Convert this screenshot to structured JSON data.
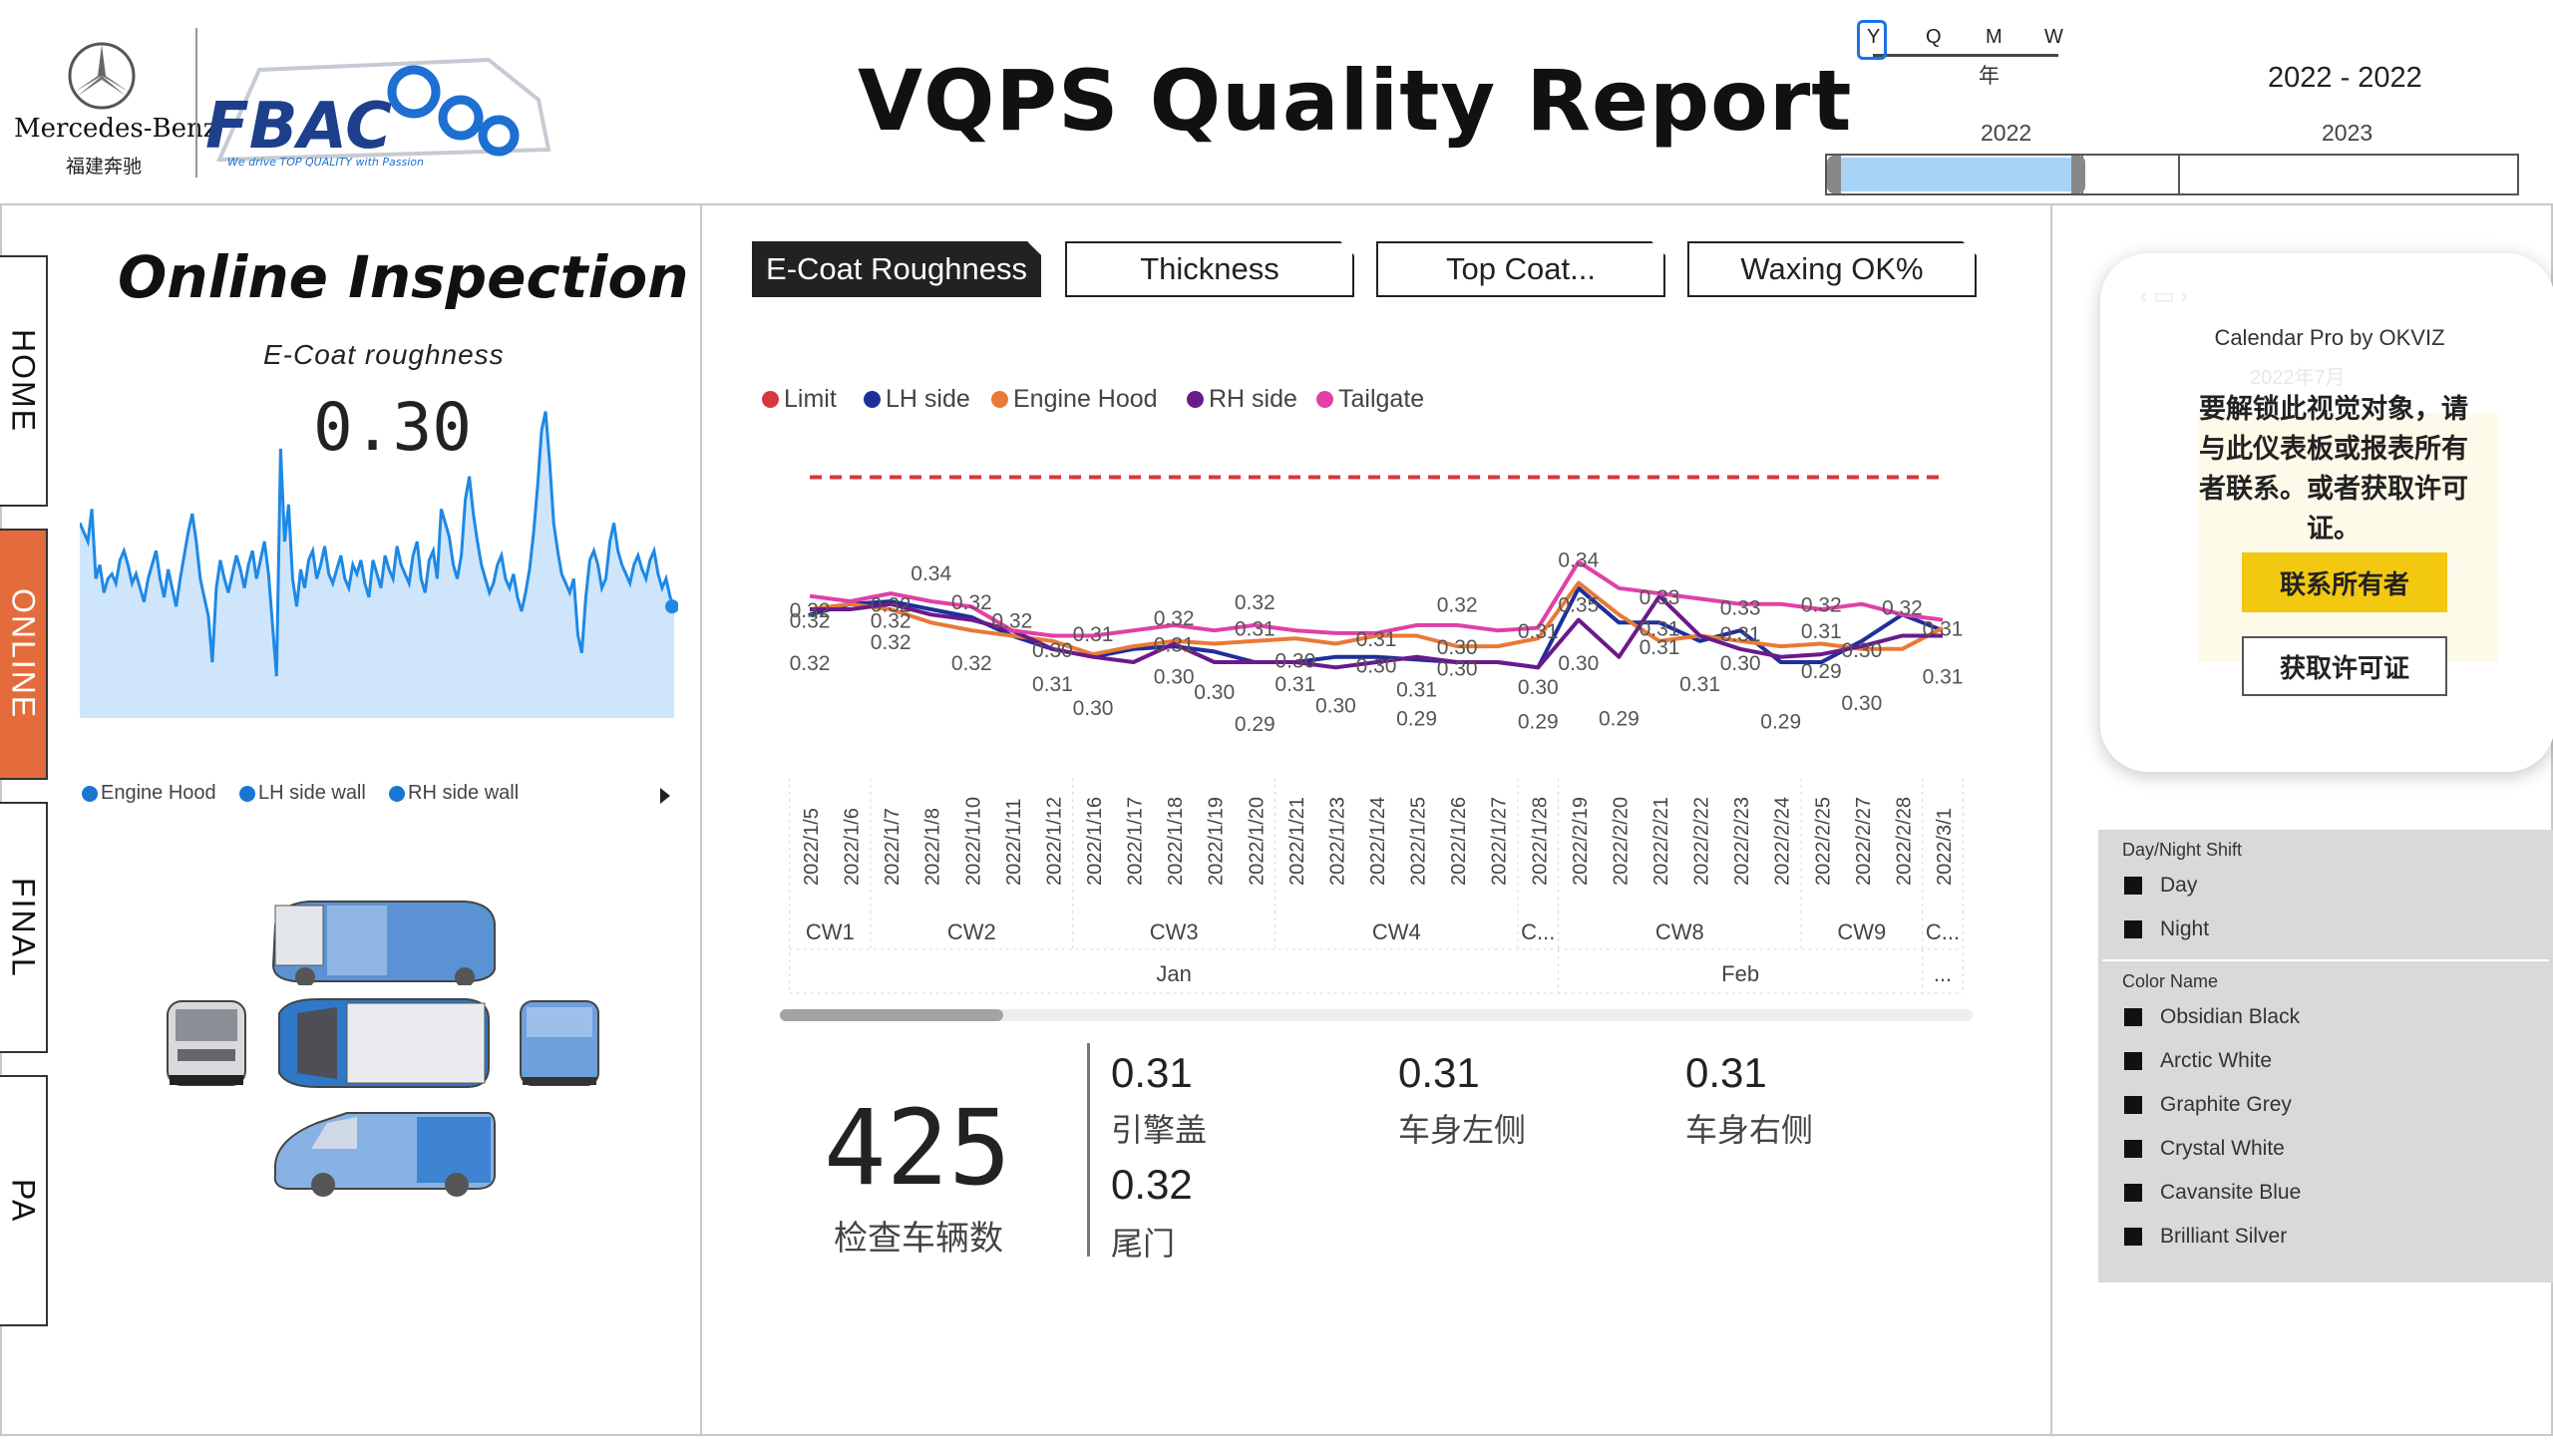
{
  "header": {
    "brand": "Mercedes-Benz",
    "brand_cn": "福建奔驰",
    "fbac_logo": "FBAC",
    "fbac_tagline": "We drive TOP QUALITY with Passion",
    "title": "VQPS Quality Report"
  },
  "date_slicer": {
    "granularity": [
      "Y",
      "Q",
      "M",
      "W"
    ],
    "selected_granularity": "Y",
    "granularity_label": "年",
    "range_text": "2022 - 2022",
    "years": [
      "2022",
      "2023"
    ],
    "selection_fraction": 0.36
  },
  "nav_tabs": [
    {
      "label": "HOME",
      "active": false
    },
    {
      "label": "ONLINE",
      "active": true
    },
    {
      "label": "FINAL",
      "active": false
    },
    {
      "label": "PA",
      "active": false
    }
  ],
  "left_panel": {
    "title": "Online Inspection",
    "subtitle": "E-Coat roughness",
    "value": "0.30",
    "legend": [
      {
        "label": "Engine Hood",
        "color": "#1976d2"
      },
      {
        "label": "LH side wall",
        "color": "#1976d2"
      },
      {
        "label": "RH side wall",
        "color": "#1976d2"
      }
    ],
    "sparkline_color": "#1e88e5",
    "sparkline": [
      0.42,
      0.4,
      0.38,
      0.45,
      0.3,
      0.33,
      0.27,
      0.3,
      0.31,
      0.29,
      0.34,
      0.36,
      0.33,
      0.29,
      0.31,
      0.28,
      0.25,
      0.3,
      0.33,
      0.36,
      0.3,
      0.26,
      0.32,
      0.28,
      0.24,
      0.3,
      0.35,
      0.4,
      0.44,
      0.38,
      0.3,
      0.26,
      0.22,
      0.12,
      0.28,
      0.34,
      0.3,
      0.27,
      0.31,
      0.35,
      0.32,
      0.28,
      0.33,
      0.36,
      0.3,
      0.34,
      0.38,
      0.31,
      0.2,
      0.09,
      0.58,
      0.38,
      0.46,
      0.3,
      0.24,
      0.32,
      0.28,
      0.34,
      0.36,
      0.3,
      0.33,
      0.37,
      0.31,
      0.29,
      0.32,
      0.35,
      0.3,
      0.28,
      0.33,
      0.31,
      0.34,
      0.29,
      0.26,
      0.34,
      0.31,
      0.28,
      0.35,
      0.32,
      0.3,
      0.37,
      0.33,
      0.31,
      0.29,
      0.35,
      0.38,
      0.3,
      0.27,
      0.34,
      0.36,
      0.3,
      0.45,
      0.42,
      0.39,
      0.33,
      0.3,
      0.35,
      0.47,
      0.52,
      0.44,
      0.38,
      0.33,
      0.3,
      0.27,
      0.29,
      0.33,
      0.35,
      0.3,
      0.28,
      0.31,
      0.26,
      0.23,
      0.27,
      0.32,
      0.4,
      0.5,
      0.62,
      0.66,
      0.55,
      0.42,
      0.36,
      0.31,
      0.29,
      0.27,
      0.3,
      0.18,
      0.14,
      0.26,
      0.34,
      0.36,
      0.33,
      0.28,
      0.3,
      0.38,
      0.42,
      0.36,
      0.33,
      0.31,
      0.29,
      0.33,
      0.35,
      0.32,
      0.3,
      0.34,
      0.36,
      0.31,
      0.28,
      0.3,
      0.26,
      0.24
    ]
  },
  "tabs": [
    {
      "label": "E-Coat Roughness",
      "active": true
    },
    {
      "label": "Thickness",
      "active": false
    },
    {
      "label": "Top Coat...",
      "active": false
    },
    {
      "label": "Waxing OK%",
      "active": false
    }
  ],
  "chart_data": {
    "type": "line",
    "x": [
      "2022/1/5",
      "2022/1/6",
      "2022/1/7",
      "2022/1/8",
      "2022/1/10",
      "2022/1/11",
      "2022/1/12",
      "2022/1/16",
      "2022/1/17",
      "2022/1/18",
      "2022/1/19",
      "2022/1/20",
      "2022/1/21",
      "2022/1/23",
      "2022/1/24",
      "2022/1/25",
      "2022/1/26",
      "2022/1/27",
      "2022/1/28",
      "2022/2/19",
      "2022/2/20",
      "2022/2/21",
      "2022/2/22",
      "2022/2/23",
      "2022/2/24",
      "2022/2/25",
      "2022/2/27",
      "2022/2/28",
      "2022/3/1"
    ],
    "week_labels": [
      {
        "label": "CW1",
        "from": 0,
        "to": 1
      },
      {
        "label": "CW2",
        "from": 2,
        "to": 6
      },
      {
        "label": "CW3",
        "from": 7,
        "to": 11
      },
      {
        "label": "CW4",
        "from": 12,
        "to": 17
      },
      {
        "label": "C...",
        "from": 18,
        "to": 18
      },
      {
        "label": "CW8",
        "from": 19,
        "to": 24
      },
      {
        "label": "CW9",
        "from": 25,
        "to": 27
      },
      {
        "label": "C...",
        "from": 28,
        "to": 28
      }
    ],
    "month_labels": [
      {
        "label": "Jan",
        "from": 0,
        "to": 18
      },
      {
        "label": "Feb",
        "from": 19,
        "to": 27
      },
      {
        "label": "...",
        "from": 28,
        "to": 28
      }
    ],
    "series": [
      {
        "name": "Limit",
        "color": "#d7373f",
        "dashed": true,
        "values": [
          0.37,
          0.37,
          0.37,
          0.37,
          0.37,
          0.37,
          0.37,
          0.37,
          0.37,
          0.37,
          0.37,
          0.37,
          0.37,
          0.37,
          0.37,
          0.37,
          0.37,
          0.37,
          0.37,
          0.37,
          0.37,
          0.37,
          0.37,
          0.37,
          0.37,
          0.37,
          0.37,
          0.37,
          0.37
        ]
      },
      {
        "name": "LH side",
        "color": "#1f2f9a",
        "values": [
          0.318,
          0.322,
          0.323,
          0.32,
          0.317,
          0.31,
          0.305,
          0.302,
          0.305,
          0.306,
          0.304,
          0.3,
          0.3,
          0.302,
          0.302,
          0.301,
          0.3,
          0.3,
          0.298,
          0.328,
          0.315,
          0.315,
          0.308,
          0.312,
          0.3,
          0.3,
          0.308,
          0.318,
          0.312
        ]
      },
      {
        "name": "Engine Hood",
        "color": "#e87a35",
        "values": [
          0.32,
          0.322,
          0.32,
          0.315,
          0.312,
          0.31,
          0.308,
          0.303,
          0.306,
          0.308,
          0.307,
          0.308,
          0.309,
          0.307,
          0.31,
          0.31,
          0.306,
          0.306,
          0.309,
          0.33,
          0.318,
          0.308,
          0.31,
          0.308,
          0.306,
          0.307,
          0.305,
          0.305,
          0.313
        ]
      },
      {
        "name": "RH side",
        "color": "#6a1a8a",
        "values": [
          0.32,
          0.32,
          0.322,
          0.318,
          0.316,
          0.312,
          0.305,
          0.302,
          0.3,
          0.307,
          0.3,
          0.3,
          0.3,
          0.298,
          0.3,
          0.302,
          0.3,
          0.3,
          0.298,
          0.316,
          0.302,
          0.325,
          0.31,
          0.305,
          0.302,
          0.303,
          0.306,
          0.31,
          0.31
        ]
      },
      {
        "name": "Tailgate",
        "color": "#e040a8",
        "values": [
          0.325,
          0.323,
          0.326,
          0.323,
          0.321,
          0.312,
          0.31,
          0.31,
          0.312,
          0.314,
          0.312,
          0.314,
          0.312,
          0.311,
          0.311,
          0.314,
          0.314,
          0.312,
          0.313,
          0.338,
          0.328,
          0.326,
          0.324,
          0.322,
          0.322,
          0.32,
          0.322,
          0.318,
          0.316
        ]
      }
    ],
    "data_labels": [
      {
        "x": 0,
        "y": 0.32,
        "text": "0.32"
      },
      {
        "x": 0,
        "y": 0.316,
        "text": "0.32"
      },
      {
        "x": 0,
        "y": 0.3,
        "text": "0.32"
      },
      {
        "x": 2,
        "y": 0.322,
        "text": "0.32"
      },
      {
        "x": 2,
        "y": 0.316,
        "text": "0.32"
      },
      {
        "x": 2,
        "y": 0.308,
        "text": "0.32"
      },
      {
        "x": 3,
        "y": 0.334,
        "text": "0.34"
      },
      {
        "x": 4,
        "y": 0.323,
        "text": "0.32"
      },
      {
        "x": 4,
        "y": 0.3,
        "text": "0.32"
      },
      {
        "x": 5,
        "y": 0.316,
        "text": "0.32"
      },
      {
        "x": 6,
        "y": 0.305,
        "text": "0.30"
      },
      {
        "x": 6,
        "y": 0.292,
        "text": "0.31"
      },
      {
        "x": 7,
        "y": 0.311,
        "text": "0.31"
      },
      {
        "x": 7,
        "y": 0.283,
        "text": "0.30"
      },
      {
        "x": 9,
        "y": 0.317,
        "text": "0.32"
      },
      {
        "x": 9,
        "y": 0.307,
        "text": "0.31"
      },
      {
        "x": 9,
        "y": 0.295,
        "text": "0.30"
      },
      {
        "x": 10,
        "y": 0.289,
        "text": "0.30"
      },
      {
        "x": 11,
        "y": 0.323,
        "text": "0.32"
      },
      {
        "x": 11,
        "y": 0.313,
        "text": "0.31"
      },
      {
        "x": 11,
        "y": 0.277,
        "text": "0.29"
      },
      {
        "x": 12,
        "y": 0.301,
        "text": "0.30"
      },
      {
        "x": 12,
        "y": 0.292,
        "text": "0.31"
      },
      {
        "x": 13,
        "y": 0.284,
        "text": "0.30"
      },
      {
        "x": 14,
        "y": 0.309,
        "text": "0.31"
      },
      {
        "x": 14,
        "y": 0.299,
        "text": "0.30"
      },
      {
        "x": 15,
        "y": 0.29,
        "text": "0.31"
      },
      {
        "x": 15,
        "y": 0.279,
        "text": "0.29"
      },
      {
        "x": 16,
        "y": 0.322,
        "text": "0.32"
      },
      {
        "x": 16,
        "y": 0.306,
        "text": "0.30"
      },
      {
        "x": 16,
        "y": 0.298,
        "text": "0.30"
      },
      {
        "x": 18,
        "y": 0.312,
        "text": "0.31"
      },
      {
        "x": 18,
        "y": 0.291,
        "text": "0.30"
      },
      {
        "x": 18,
        "y": 0.278,
        "text": "0.29"
      },
      {
        "x": 19,
        "y": 0.339,
        "text": "0.34"
      },
      {
        "x": 19,
        "y": 0.322,
        "text": "0.35"
      },
      {
        "x": 19,
        "y": 0.3,
        "text": "0.30"
      },
      {
        "x": 20,
        "y": 0.279,
        "text": "0.29"
      },
      {
        "x": 21,
        "y": 0.325,
        "text": "0.33"
      },
      {
        "x": 21,
        "y": 0.313,
        "text": "0.31"
      },
      {
        "x": 21,
        "y": 0.306,
        "text": "0.31"
      },
      {
        "x": 22,
        "y": 0.292,
        "text": "0.31"
      },
      {
        "x": 23,
        "y": 0.321,
        "text": "0.33"
      },
      {
        "x": 23,
        "y": 0.311,
        "text": "0.31"
      },
      {
        "x": 23,
        "y": 0.3,
        "text": "0.30"
      },
      {
        "x": 24,
        "y": 0.278,
        "text": "0.29"
      },
      {
        "x": 25,
        "y": 0.322,
        "text": "0.32"
      },
      {
        "x": 25,
        "y": 0.312,
        "text": "0.31"
      },
      {
        "x": 25,
        "y": 0.297,
        "text": "0.29"
      },
      {
        "x": 26,
        "y": 0.305,
        "text": "0.30"
      },
      {
        "x": 26,
        "y": 0.285,
        "text": "0.30"
      },
      {
        "x": 27,
        "y": 0.321,
        "text": "0.32"
      },
      {
        "x": 28,
        "y": 0.313,
        "text": "0.31"
      },
      {
        "x": 28,
        "y": 0.295,
        "text": "0.31"
      }
    ],
    "ylim": [
      0.26,
      0.38
    ],
    "legend_position": "top-left"
  },
  "kpis": {
    "count": "425",
    "count_label": "检查车辆数",
    "items": [
      {
        "value": "0.31",
        "label": "引擎盖"
      },
      {
        "value": "0.31",
        "label": "车身左侧"
      },
      {
        "value": "0.31",
        "label": "车身右侧"
      },
      {
        "value": "0.32",
        "label": "尾门"
      }
    ]
  },
  "calendar_popup": {
    "title": "Calendar Pro by OKVIZ",
    "bg_month": "2022年7月",
    "message": "要解锁此视觉对象，请与此仪表板或报表所有者联系。或者获取许可证。",
    "contact_button": "联系所有者",
    "license_button": "获取许可证"
  },
  "filters": {
    "shift_title": "Day/Night Shift",
    "shift_items": [
      "Day",
      "Night"
    ],
    "color_title": "Color Name",
    "color_items": [
      "Obsidian Black",
      "Arctic White",
      "Graphite Grey",
      "Crystal White",
      "Cavansite Blue",
      "Brilliant Silver"
    ]
  }
}
